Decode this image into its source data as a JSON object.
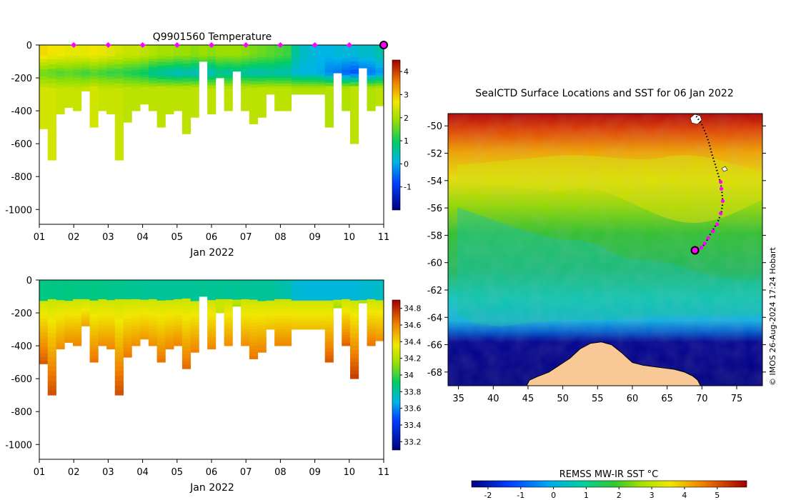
{
  "colors": {
    "land": "#f8c896",
    "track": "#000000",
    "profile_marker": "#ff00ff",
    "latest_marker": "#ff00ff",
    "axis": "#000000",
    "background": "#ffffff"
  },
  "footer": {
    "credit": "© IMOS 26-Aug-2024 17:24 Hobart"
  },
  "chart_data": [
    {
      "id": "temperature-section",
      "type": "heatmap",
      "title": "Q9901560  Temperature",
      "xlabel": "Jan 2022",
      "ylabel": "",
      "x_range": [
        1,
        11
      ],
      "xticks": [
        "01",
        "02",
        "03",
        "04",
        "05",
        "06",
        "07",
        "08",
        "09",
        "10",
        "11"
      ],
      "ylim": [
        -1090,
        0
      ],
      "yticks": [
        0,
        -200,
        -400,
        -600,
        -800,
        -1000
      ],
      "profile_marker_days": [
        2,
        3,
        4,
        5,
        6,
        7,
        8,
        9,
        10
      ],
      "latest_marker_day": 11,
      "colorbar": {
        "range": [
          -2,
          4.5
        ],
        "ticks": [
          -1,
          0,
          1,
          2,
          3,
          4
        ]
      },
      "profiles": [
        {
          "day": 1.0,
          "depth": 510,
          "surf": 2.8,
          "mid": 1.6,
          "deep": 2.3
        },
        {
          "day": 1.25,
          "depth": 700,
          "surf": 2.7,
          "mid": 1.5,
          "deep": 2.3
        },
        {
          "day": 1.5,
          "depth": 420,
          "surf": 2.7,
          "mid": 1.4,
          "deep": 2.2
        },
        {
          "day": 1.75,
          "depth": 380,
          "surf": 2.6,
          "mid": 1.5,
          "deep": 2.2
        },
        {
          "day": 2.0,
          "depth": 400,
          "surf": 2.6,
          "mid": 1.4,
          "deep": 2.2
        },
        {
          "day": 2.25,
          "depth": 280,
          "surf": 2.6,
          "mid": 1.3,
          "deep": 2.2
        },
        {
          "day": 2.5,
          "depth": 500,
          "surf": 2.7,
          "mid": 1.4,
          "deep": 2.3
        },
        {
          "day": 2.75,
          "depth": 400,
          "surf": 2.6,
          "mid": 1.3,
          "deep": 2.2
        },
        {
          "day": 3.0,
          "depth": 420,
          "surf": 2.5,
          "mid": 1.2,
          "deep": 2.2
        },
        {
          "day": 3.25,
          "depth": 700,
          "surf": 2.4,
          "mid": 1.2,
          "deep": 2.2
        },
        {
          "day": 3.5,
          "depth": 470,
          "surf": 2.3,
          "mid": 1.1,
          "deep": 2.1
        },
        {
          "day": 3.75,
          "depth": 400,
          "surf": 2.3,
          "mid": 1.0,
          "deep": 2.1
        },
        {
          "day": 4.0,
          "depth": 360,
          "surf": 2.2,
          "mid": 0.9,
          "deep": 2.1
        },
        {
          "day": 4.25,
          "depth": 400,
          "surf": 2.1,
          "mid": 0.6,
          "deep": 2.1
        },
        {
          "day": 4.5,
          "depth": 500,
          "surf": 2.0,
          "mid": 0.5,
          "deep": 2.1
        },
        {
          "day": 4.75,
          "depth": 420,
          "surf": 2.0,
          "mid": 0.4,
          "deep": 2.1
        },
        {
          "day": 5.0,
          "depth": 400,
          "surf": 1.9,
          "mid": 0.3,
          "deep": 2.1
        },
        {
          "day": 5.25,
          "depth": 540,
          "surf": 1.9,
          "mid": 0.4,
          "deep": 2.1
        },
        {
          "day": 5.5,
          "depth": 440,
          "surf": 1.8,
          "mid": 0.3,
          "deep": 2.1
        },
        {
          "day": 5.75,
          "depth": 100,
          "surf": 1.9,
          "mid": 0.5,
          "deep": 2.1
        },
        {
          "day": 6.0,
          "depth": 420,
          "surf": 1.8,
          "mid": 0.3,
          "deep": 2.1
        },
        {
          "day": 6.25,
          "depth": 200,
          "surf": 1.9,
          "mid": 0.6,
          "deep": 2.1
        },
        {
          "day": 6.5,
          "depth": 400,
          "surf": 1.9,
          "mid": 0.5,
          "deep": 2.1
        },
        {
          "day": 6.75,
          "depth": 160,
          "surf": 1.9,
          "mid": 0.6,
          "deep": 2.1
        },
        {
          "day": 7.0,
          "depth": 400,
          "surf": 1.8,
          "mid": 0.5,
          "deep": 2.1
        },
        {
          "day": 7.25,
          "depth": 480,
          "surf": 1.7,
          "mid": 0.4,
          "deep": 2.1
        },
        {
          "day": 7.5,
          "depth": 440,
          "surf": 1.6,
          "mid": 0.4,
          "deep": 2.1
        },
        {
          "day": 7.75,
          "depth": 300,
          "surf": 1.5,
          "mid": 0.5,
          "deep": 2.1
        },
        {
          "day": 8.0,
          "depth": 400,
          "surf": 1.4,
          "mid": 0.4,
          "deep": 2.1
        },
        {
          "day": 8.25,
          "depth": 400,
          "surf": 1.3,
          "mid": 0.4,
          "deep": 2.1
        },
        {
          "day": 8.5,
          "depth": 300,
          "surf": 0.6,
          "mid": 0.2,
          "deep": 2.0
        },
        {
          "day": 8.75,
          "depth": 300,
          "surf": 0.3,
          "mid": 0.1,
          "deep": 2.0
        },
        {
          "day": 9.0,
          "depth": 300,
          "surf": 0.2,
          "mid": 0.1,
          "deep": 2.0
        },
        {
          "day": 9.25,
          "depth": 300,
          "surf": 0.1,
          "mid": 0.0,
          "deep": 2.0
        },
        {
          "day": 9.5,
          "depth": 500,
          "surf": 0.1,
          "mid": -0.3,
          "deep": 2.0
        },
        {
          "day": 9.75,
          "depth": 170,
          "surf": 0.2,
          "mid": -0.4,
          "deep": 2.0
        },
        {
          "day": 10.0,
          "depth": 400,
          "surf": 0.2,
          "mid": -0.6,
          "deep": 2.0
        },
        {
          "day": 10.25,
          "depth": 600,
          "surf": 0.2,
          "mid": -0.7,
          "deep": 2.1
        },
        {
          "day": 10.5,
          "depth": 140,
          "surf": 0.3,
          "mid": -0.5,
          "deep": 2.0
        },
        {
          "day": 10.75,
          "depth": 400,
          "surf": 0.3,
          "mid": -0.4,
          "deep": 2.0
        },
        {
          "day": 11.0,
          "depth": 370,
          "surf": 0.5,
          "mid": -0.2,
          "deep": 2.1
        }
      ]
    },
    {
      "id": "salinity-section",
      "type": "heatmap",
      "title": "",
      "xlabel": "Jan 2022",
      "ylabel": "",
      "x_range": [
        1,
        11
      ],
      "xticks": [
        "01",
        "02",
        "03",
        "04",
        "05",
        "06",
        "07",
        "08",
        "09",
        "10",
        "11"
      ],
      "ylim": [
        -1090,
        0
      ],
      "yticks": [
        0,
        -200,
        -400,
        -600,
        -800,
        -1000
      ],
      "colorbar": {
        "range": [
          33.1,
          34.9
        ],
        "ticks": [
          33.2,
          33.4,
          33.6,
          33.8,
          34,
          34.2,
          34.4,
          34.6,
          34.8
        ]
      },
      "profiles": [
        {
          "day": 1.0,
          "depth": 510,
          "surf": 33.86,
          "deep": 34.72
        },
        {
          "day": 1.25,
          "depth": 700,
          "surf": 33.86,
          "deep": 34.74
        },
        {
          "day": 1.5,
          "depth": 420,
          "surf": 33.85,
          "deep": 34.6
        },
        {
          "day": 1.75,
          "depth": 380,
          "surf": 33.86,
          "deep": 34.6
        },
        {
          "day": 2.0,
          "depth": 400,
          "surf": 33.85,
          "deep": 34.62
        },
        {
          "day": 2.25,
          "depth": 280,
          "surf": 33.85,
          "deep": 34.55
        },
        {
          "day": 2.5,
          "depth": 500,
          "surf": 33.86,
          "deep": 34.66
        },
        {
          "day": 2.75,
          "depth": 400,
          "surf": 33.85,
          "deep": 34.6
        },
        {
          "day": 3.0,
          "depth": 420,
          "surf": 33.84,
          "deep": 34.62
        },
        {
          "day": 3.25,
          "depth": 700,
          "surf": 33.84,
          "deep": 34.74
        },
        {
          "day": 3.5,
          "depth": 470,
          "surf": 33.83,
          "deep": 34.65
        },
        {
          "day": 3.75,
          "depth": 400,
          "surf": 33.83,
          "deep": 34.6
        },
        {
          "day": 4.0,
          "depth": 360,
          "surf": 33.82,
          "deep": 34.58
        },
        {
          "day": 4.25,
          "depth": 400,
          "surf": 33.82,
          "deep": 34.6
        },
        {
          "day": 4.5,
          "depth": 500,
          "surf": 33.82,
          "deep": 34.66
        },
        {
          "day": 4.75,
          "depth": 420,
          "surf": 33.82,
          "deep": 34.62
        },
        {
          "day": 5.0,
          "depth": 400,
          "surf": 33.82,
          "deep": 34.62
        },
        {
          "day": 5.25,
          "depth": 540,
          "surf": 33.82,
          "deep": 34.68
        },
        {
          "day": 5.5,
          "depth": 440,
          "surf": 33.82,
          "deep": 34.63
        },
        {
          "day": 5.75,
          "depth": 100,
          "surf": 33.83,
          "deep": 34.1
        },
        {
          "day": 6.0,
          "depth": 420,
          "surf": 33.82,
          "deep": 34.62
        },
        {
          "day": 6.25,
          "depth": 200,
          "surf": 33.83,
          "deep": 34.3
        },
        {
          "day": 6.5,
          "depth": 400,
          "surf": 33.82,
          "deep": 34.6
        },
        {
          "day": 6.75,
          "depth": 160,
          "surf": 33.83,
          "deep": 34.2
        },
        {
          "day": 7.0,
          "depth": 400,
          "surf": 33.82,
          "deep": 34.6
        },
        {
          "day": 7.25,
          "depth": 480,
          "surf": 33.82,
          "deep": 34.66
        },
        {
          "day": 7.5,
          "depth": 440,
          "surf": 33.82,
          "deep": 34.63
        },
        {
          "day": 7.75,
          "depth": 300,
          "surf": 33.82,
          "deep": 34.5
        },
        {
          "day": 8.0,
          "depth": 400,
          "surf": 33.8,
          "deep": 34.62
        },
        {
          "day": 8.25,
          "depth": 400,
          "surf": 33.78,
          "deep": 34.62
        },
        {
          "day": 8.5,
          "depth": 300,
          "surf": 33.72,
          "deep": 34.5
        },
        {
          "day": 8.75,
          "depth": 300,
          "surf": 33.7,
          "deep": 34.5
        },
        {
          "day": 9.0,
          "depth": 300,
          "surf": 33.7,
          "deep": 34.5
        },
        {
          "day": 9.25,
          "depth": 300,
          "surf": 33.7,
          "deep": 34.5
        },
        {
          "day": 9.5,
          "depth": 500,
          "surf": 33.7,
          "deep": 34.72
        },
        {
          "day": 9.75,
          "depth": 170,
          "surf": 33.7,
          "deep": 34.2
        },
        {
          "day": 10.0,
          "depth": 400,
          "surf": 33.7,
          "deep": 34.7
        },
        {
          "day": 10.25,
          "depth": 600,
          "surf": 33.7,
          "deep": 34.78
        },
        {
          "day": 10.5,
          "depth": 140,
          "surf": 33.72,
          "deep": 34.2
        },
        {
          "day": 10.75,
          "depth": 400,
          "surf": 33.72,
          "deep": 34.66
        },
        {
          "day": 11.0,
          "depth": 370,
          "surf": 33.74,
          "deep": 34.6
        }
      ]
    },
    {
      "id": "sst-map",
      "type": "heatmap",
      "title": "SealCTD Surface Locations and SST for 06 Jan 2022",
      "xlabel": "",
      "ylabel": "",
      "lon_range": [
        33.5,
        78.7
      ],
      "lat_range": [
        -69,
        -49.1
      ],
      "xticks": [
        35,
        40,
        45,
        50,
        55,
        60,
        65,
        70,
        75
      ],
      "yticks": [
        -50,
        -52,
        -54,
        -56,
        -58,
        -60,
        -62,
        -64,
        -66,
        -68
      ],
      "colorbar": {
        "label": "REMSS MW-IR SST °C",
        "range": [
          -2.5,
          5.9
        ],
        "ticks": [
          -2,
          -1,
          0,
          1,
          2,
          3,
          4,
          5
        ]
      },
      "track": [
        {
          "lon": 69.2,
          "lat": -49.3
        },
        {
          "lon": 69.6,
          "lat": -49.6
        },
        {
          "lon": 70.0,
          "lat": -49.9
        },
        {
          "lon": 70.5,
          "lat": -50.5
        },
        {
          "lon": 71.0,
          "lat": -51.2
        },
        {
          "lon": 71.4,
          "lat": -52.0
        },
        {
          "lon": 71.9,
          "lat": -52.8
        },
        {
          "lon": 72.3,
          "lat": -53.5
        },
        {
          "lon": 72.7,
          "lat": -54.2
        },
        {
          "lon": 72.9,
          "lat": -54.9
        },
        {
          "lon": 73.0,
          "lat": -55.6
        },
        {
          "lon": 72.8,
          "lat": -56.3
        },
        {
          "lon": 72.3,
          "lat": -57.0
        },
        {
          "lon": 71.6,
          "lat": -57.6
        },
        {
          "lon": 71.0,
          "lat": -58.1
        },
        {
          "lon": 70.5,
          "lat": -58.6
        },
        {
          "lon": 69.9,
          "lat": -58.9
        },
        {
          "lon": 69.0,
          "lat": -59.1
        }
      ],
      "profile_positions": [
        {
          "lon": 72.7,
          "lat": -54.1
        },
        {
          "lon": 72.8,
          "lat": -54.6
        },
        {
          "lon": 73.0,
          "lat": -55.5
        },
        {
          "lon": 72.7,
          "lat": -56.4
        },
        {
          "lon": 72.2,
          "lat": -57.2
        },
        {
          "lon": 71.6,
          "lat": -57.7
        },
        {
          "lon": 70.9,
          "lat": -58.2
        },
        {
          "lon": 70.4,
          "lat": -58.6
        },
        {
          "lon": 69.9,
          "lat": -58.9
        }
      ],
      "latest_position": {
        "lon": 69.0,
        "lat": -59.1
      },
      "land": {
        "antarctica_outline": [
          {
            "lon": 44.8,
            "lat": -69.0
          },
          {
            "lon": 45.2,
            "lat": -68.6
          },
          {
            "lon": 46.5,
            "lat": -68.3
          },
          {
            "lon": 48.0,
            "lat": -68.0
          },
          {
            "lon": 49.5,
            "lat": -67.5
          },
          {
            "lon": 51.0,
            "lat": -67.0
          },
          {
            "lon": 52.5,
            "lat": -66.3
          },
          {
            "lon": 54.0,
            "lat": -65.9
          },
          {
            "lon": 55.5,
            "lat": -65.8
          },
          {
            "lon": 57.0,
            "lat": -66.0
          },
          {
            "lon": 58.5,
            "lat": -66.6
          },
          {
            "lon": 60.0,
            "lat": -67.3
          },
          {
            "lon": 61.5,
            "lat": -67.5
          },
          {
            "lon": 63.0,
            "lat": -67.6
          },
          {
            "lon": 64.5,
            "lat": -67.7
          },
          {
            "lon": 66.0,
            "lat": -67.8
          },
          {
            "lon": 67.5,
            "lat": -68.0
          },
          {
            "lon": 68.7,
            "lat": -68.3
          },
          {
            "lon": 69.4,
            "lat": -68.6
          },
          {
            "lon": 69.8,
            "lat": -69.0
          }
        ]
      }
    }
  ]
}
